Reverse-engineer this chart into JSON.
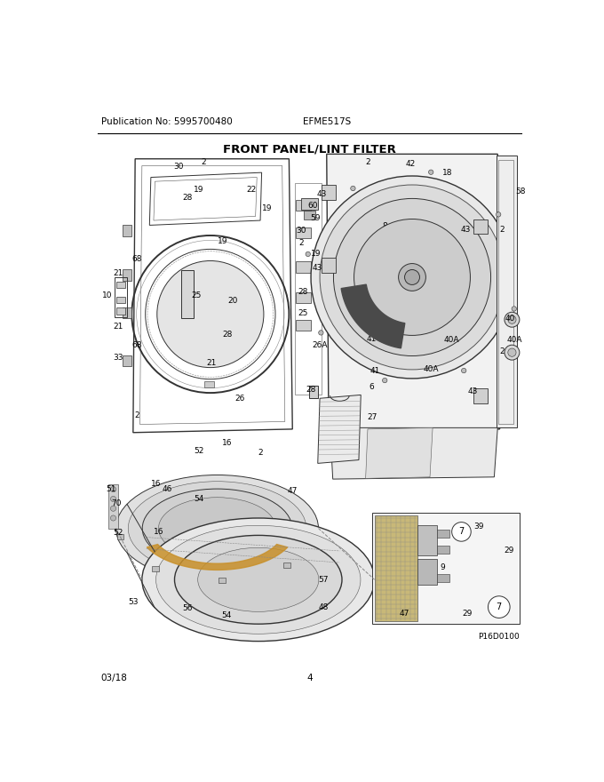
{
  "publication_no": "Publication No: 5995700480",
  "model": "EFME517S",
  "title": "FRONT PANEL/LINT FILTER",
  "date": "03/18",
  "page": "4",
  "diagram_id": "P16D0100",
  "bg_color": "#ffffff",
  "text_color": "#000000",
  "figsize": [
    6.8,
    8.8
  ],
  "dpi": 100
}
